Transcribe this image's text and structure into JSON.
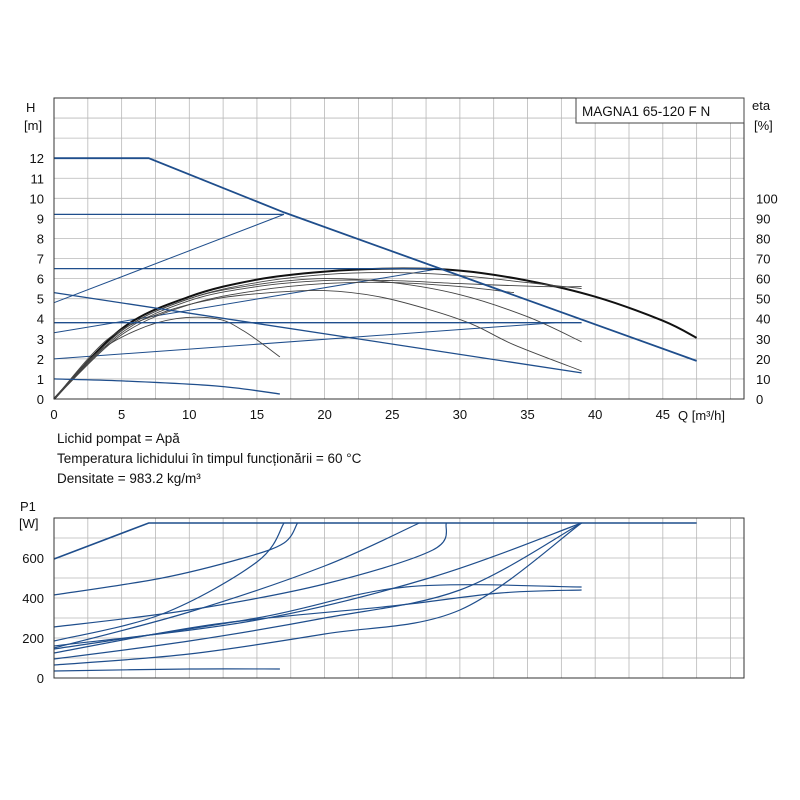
{
  "chart_data": [
    {
      "type": "line",
      "title": "",
      "model_label": "MAGNA1 65-120 F N",
      "xlabel": "Q [m³/h]",
      "ylabel_name": "H",
      "ylabel_unit": "[m]",
      "y2label_name": "eta",
      "y2label_unit": "[%]",
      "xlim": [
        0,
        51
      ],
      "ylim": [
        0,
        15
      ],
      "y2lim": [
        0,
        150
      ],
      "x_ticks": [
        0,
        5,
        10,
        15,
        20,
        25,
        30,
        35,
        40,
        45
      ],
      "y_ticks": [
        0,
        1,
        2,
        3,
        4,
        5,
        6,
        7,
        8,
        9,
        10,
        11,
        12
      ],
      "y2_ticks": [
        0,
        10,
        20,
        30,
        40,
        50,
        60,
        70,
        80,
        90,
        100
      ],
      "grid": true,
      "head_curves": [
        {
          "name": "",
          "points": [
            [
              0,
              12
            ],
            [
              7,
              12
            ],
            [
              17,
              9.3
            ],
            [
              47.5,
              1.9
            ]
          ]
        },
        {
          "name": "",
          "points": [
            [
              0,
              9.2
            ],
            [
              17,
              9.2
            ]
          ]
        },
        {
          "name": "",
          "points": [
            [
              0,
              6.5
            ],
            [
              28.5,
              6.5
            ]
          ]
        },
        {
          "name": "",
          "points": [
            [
              0,
              5.3
            ],
            [
              39,
              1.3
            ]
          ]
        },
        {
          "name": "",
          "points": [
            [
              0,
              3.8
            ],
            [
              39,
              3.8
            ]
          ]
        },
        {
          "name": "",
          "points": [
            [
              0,
              1.0
            ],
            [
              5,
              0.9
            ],
            [
              12,
              0.65
            ],
            [
              16.7,
              0.25
            ]
          ]
        }
      ],
      "system_curves": [
        {
          "name": "",
          "points": [
            [
              0,
              4.8
            ],
            [
              17,
              9.2
            ]
          ]
        },
        {
          "name": "",
          "points": [
            [
              0,
              3.3
            ],
            [
              28.5,
              6.5
            ]
          ]
        },
        {
          "name": "",
          "points": [
            [
              0,
              2.0
            ],
            [
              37,
              3.8
            ]
          ]
        }
      ],
      "efficiency_curves": [
        {
          "name": "",
          "points": [
            [
              0,
              0
            ],
            [
              5,
              35
            ],
            [
              10,
              51
            ],
            [
              15,
              59.5
            ],
            [
              20,
              63.5
            ],
            [
              25,
              65
            ],
            [
              30,
              64
            ],
            [
              35,
              59
            ],
            [
              40,
              51
            ],
            [
              45,
              39
            ],
            [
              47.5,
              30.5
            ]
          ]
        },
        {
          "name": "",
          "points": [
            [
              0,
              0
            ],
            [
              4,
              30
            ],
            [
              8,
              43
            ],
            [
              12,
              50
            ],
            [
              16,
              53
            ],
            [
              20,
              54
            ],
            [
              24,
              51
            ],
            [
              28,
              44
            ],
            [
              31,
              37
            ],
            [
              34,
              27
            ],
            [
              39,
              14
            ]
          ]
        },
        {
          "name": "",
          "points": [
            [
              0,
              0
            ],
            [
              5,
              34
            ],
            [
              10,
              50
            ],
            [
              15,
              58
            ],
            [
              20,
              62
            ],
            [
              25,
              63
            ],
            [
              30,
              61.5
            ],
            [
              35,
              58
            ],
            [
              39,
              55
            ]
          ]
        },
        {
          "name": "",
          "points": [
            [
              0,
              0
            ],
            [
              3,
              22
            ],
            [
              6,
              34
            ],
            [
              9,
              40
            ],
            [
              12,
              40
            ],
            [
              14,
              34
            ],
            [
              16.7,
              21
            ]
          ]
        },
        {
          "name": "",
          "points": [
            [
              0,
              0
            ],
            [
              5,
              34
            ],
            [
              10,
              50
            ],
            [
              15,
              57
            ],
            [
              20,
              60
            ],
            [
              25,
              58
            ],
            [
              30,
              52
            ],
            [
              35,
              41
            ],
            [
              39,
              28.5
            ]
          ]
        },
        {
          "name": "",
          "points": [
            [
              0,
              0
            ],
            [
              5,
              33
            ],
            [
              10,
              49
            ],
            [
              15,
              56
            ],
            [
              20,
              59
            ],
            [
              25,
              59
            ],
            [
              30,
              57.5
            ],
            [
              36,
              56
            ],
            [
              39,
              56
            ]
          ]
        },
        {
          "name": "",
          "points": [
            [
              0,
              0
            ],
            [
              5,
              32
            ],
            [
              10,
              47
            ],
            [
              15,
              54
            ],
            [
              20,
              57.5
            ],
            [
              25,
              58
            ],
            [
              30,
              56
            ],
            [
              34,
              53
            ]
          ]
        }
      ]
    },
    {
      "type": "line",
      "title": "",
      "xlabel": "",
      "ylabel_name": "P1",
      "ylabel_unit": "[W]",
      "xlim": [
        0,
        51
      ],
      "ylim": [
        0,
        800
      ],
      "y_ticks": [
        0,
        200,
        400,
        600
      ],
      "grid": true,
      "power_curves": [
        {
          "name": "",
          "points": [
            [
              0,
              595
            ],
            [
              7,
              775
            ],
            [
              47.5,
              775
            ]
          ]
        },
        {
          "name": "",
          "points": [
            [
              0,
              415
            ],
            [
              8,
              500
            ],
            [
              14,
              600
            ],
            [
              17,
              675
            ],
            [
              18,
              775
            ]
          ]
        },
        {
          "name": "",
          "points": [
            [
              0,
              255
            ],
            [
              10,
              340
            ],
            [
              20,
              470
            ],
            [
              28,
              640
            ],
            [
              29,
              775
            ]
          ]
        },
        {
          "name": "",
          "points": [
            [
              0,
              160
            ],
            [
              15,
              290
            ],
            [
              28,
              505
            ],
            [
              39,
              775
            ]
          ]
        },
        {
          "name": "",
          "points": [
            [
              0,
              95
            ],
            [
              10,
              185
            ],
            [
              20,
              300
            ],
            [
              30,
              440
            ],
            [
              39,
              775
            ]
          ]
        },
        {
          "name": "",
          "points": [
            [
              0,
              65
            ],
            [
              10,
              120
            ],
            [
              20,
              220
            ],
            [
              30,
              340
            ],
            [
              39,
              775
            ]
          ]
        },
        {
          "name": "",
          "points": [
            [
              0,
              125
            ],
            [
              12,
              270
            ],
            [
              25,
              360
            ],
            [
              33,
              425
            ],
            [
              39,
              440
            ]
          ]
        },
        {
          "name": "",
          "points": [
            [
              0,
              35
            ],
            [
              10,
              45
            ],
            [
              16.7,
              45
            ]
          ]
        },
        {
          "name": "",
          "points": [
            [
              0,
              185
            ],
            [
              8,
              320
            ],
            [
              15,
              580
            ],
            [
              17,
              775
            ]
          ]
        },
        {
          "name": "",
          "points": [
            [
              0,
              145
            ],
            [
              15,
              300
            ],
            [
              26,
              455
            ],
            [
              39,
              455
            ]
          ]
        },
        {
          "name": "",
          "points": [
            [
              0,
              150
            ],
            [
              10,
              330
            ],
            [
              20,
              560
            ],
            [
              27,
              775
            ]
          ]
        }
      ]
    }
  ],
  "info": {
    "fluid": "Lichid pompat = Apă",
    "temperature": "Temperatura lichidului în timpul funcționării = 60 °C",
    "density": "Densitate = 983.2 kg/m³"
  },
  "colors": {
    "pump_curve": "#1f4e8c",
    "efficiency": "#111111",
    "grid": "#b8b8b8",
    "frame": "#333333"
  }
}
